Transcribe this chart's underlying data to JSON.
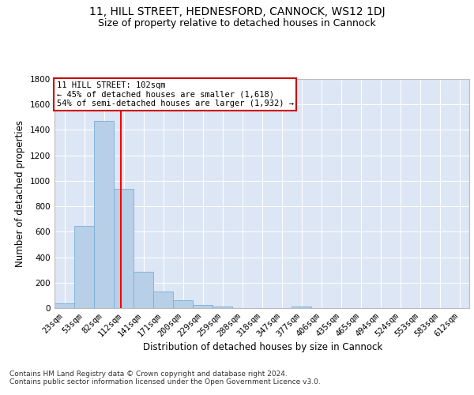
{
  "title_line1": "11, HILL STREET, HEDNESFORD, CANNOCK, WS12 1DJ",
  "title_line2": "Size of property relative to detached houses in Cannock",
  "xlabel": "Distribution of detached houses by size in Cannock",
  "ylabel": "Number of detached properties",
  "categories": [
    "23sqm",
    "53sqm",
    "82sqm",
    "112sqm",
    "141sqm",
    "171sqm",
    "200sqm",
    "229sqm",
    "259sqm",
    "288sqm",
    "318sqm",
    "347sqm",
    "377sqm",
    "406sqm",
    "435sqm",
    "465sqm",
    "494sqm",
    "524sqm",
    "553sqm",
    "583sqm",
    "612sqm"
  ],
  "values": [
    38,
    645,
    1470,
    940,
    285,
    128,
    62,
    22,
    12,
    0,
    0,
    0,
    13,
    0,
    0,
    0,
    0,
    0,
    0,
    0,
    0
  ],
  "bar_color": "#b8cfe8",
  "bar_edgecolor": "#7aadd4",
  "bg_color": "#dce6f5",
  "grid_color": "#ffffff",
  "vline_x": 2.85,
  "annotation_text": "11 HILL STREET: 102sqm\n← 45% of detached houses are smaller (1,618)\n54% of semi-detached houses are larger (1,932) →",
  "annotation_box_color": "#cc0000",
  "ylim": [
    0,
    1800
  ],
  "yticks": [
    0,
    200,
    400,
    600,
    800,
    1000,
    1200,
    1400,
    1600,
    1800
  ],
  "footer": "Contains HM Land Registry data © Crown copyright and database right 2024.\nContains public sector information licensed under the Open Government Licence v3.0.",
  "title_fontsize": 10,
  "subtitle_fontsize": 9,
  "axis_label_fontsize": 8.5,
  "tick_fontsize": 7.5,
  "footer_fontsize": 6.5,
  "annotation_fontsize": 7.5
}
